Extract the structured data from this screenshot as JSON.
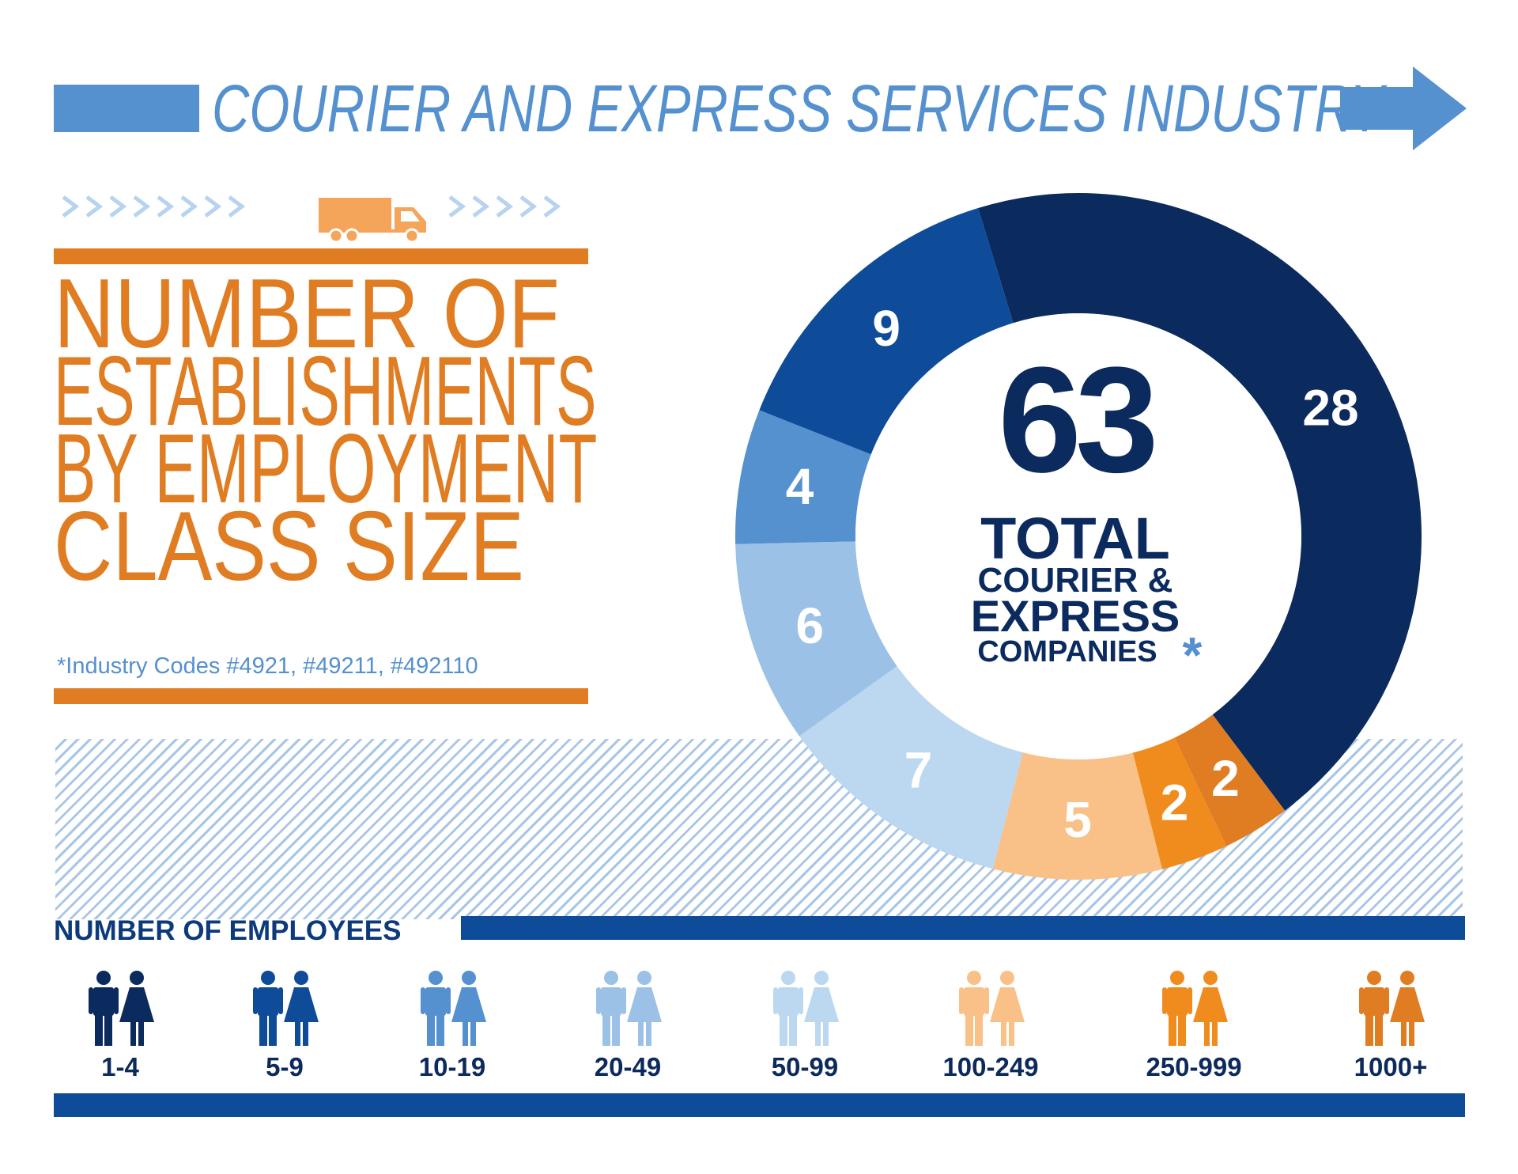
{
  "header": {
    "title": "COURIER AND EXPRESS SERVICES INDUSTRY",
    "color": "#5590cf"
  },
  "decor": {
    "truck_icon": "truck-icon",
    "chevron_icon": "chevron-right-icon",
    "chevron_color": "#b7d3ef",
    "truck_color": "#f4a55a"
  },
  "headline": {
    "lines": [
      "NUMBER OF",
      "ESTABLISHMENTS",
      "BY EMPLOYMENT",
      "CLASS SIZE"
    ],
    "footnote": "*Industry Codes #4921, #49211, #492110",
    "color": "#e07c21"
  },
  "center": {
    "total": "63",
    "line1": "TOTAL",
    "line2": "COURIER &",
    "line3": "EXPRESS",
    "line4": "COMPANIES",
    "asterisk": "*"
  },
  "employees": {
    "title": "NUMBER OF EMPLOYEES",
    "icon": "people-icon",
    "classes": [
      {
        "label": "1-4",
        "color": "#0b2a5e"
      },
      {
        "label": "5-9",
        "color": "#0e4c9a"
      },
      {
        "label": "10-19",
        "color": "#5590cf"
      },
      {
        "label": "20-49",
        "color": "#9cc1e6"
      },
      {
        "label": "50-99",
        "color": "#bcd7f0"
      },
      {
        "label": "100-249",
        "color": "#f9c187"
      },
      {
        "label": "250-999",
        "color": "#f08c1e"
      },
      {
        "label": "1000+",
        "color": "#e07c21"
      }
    ]
  },
  "chart_data": {
    "type": "pie",
    "style": "donut",
    "total": 63,
    "slices": [
      {
        "category": "1-4",
        "value": 28,
        "label": "28",
        "color": "#0b2a5e"
      },
      {
        "category": "1000+",
        "value": 2,
        "label": "2",
        "color": "#e07c21"
      },
      {
        "category": "250-999",
        "value": 2,
        "label": "2",
        "color": "#f08c1e"
      },
      {
        "category": "100-249",
        "value": 5,
        "label": "5",
        "color": "#f9c187"
      },
      {
        "category": "50-99",
        "value": 7,
        "label": "7",
        "color": "#bcd7f0"
      },
      {
        "category": "20-49",
        "value": 6,
        "label": "6",
        "color": "#9cc1e6"
      },
      {
        "category": "10-19",
        "value": 4,
        "label": "4",
        "color": "#5590cf"
      },
      {
        "category": "5-9",
        "value": 9,
        "label": "9",
        "color": "#0e4c9a"
      }
    ]
  }
}
